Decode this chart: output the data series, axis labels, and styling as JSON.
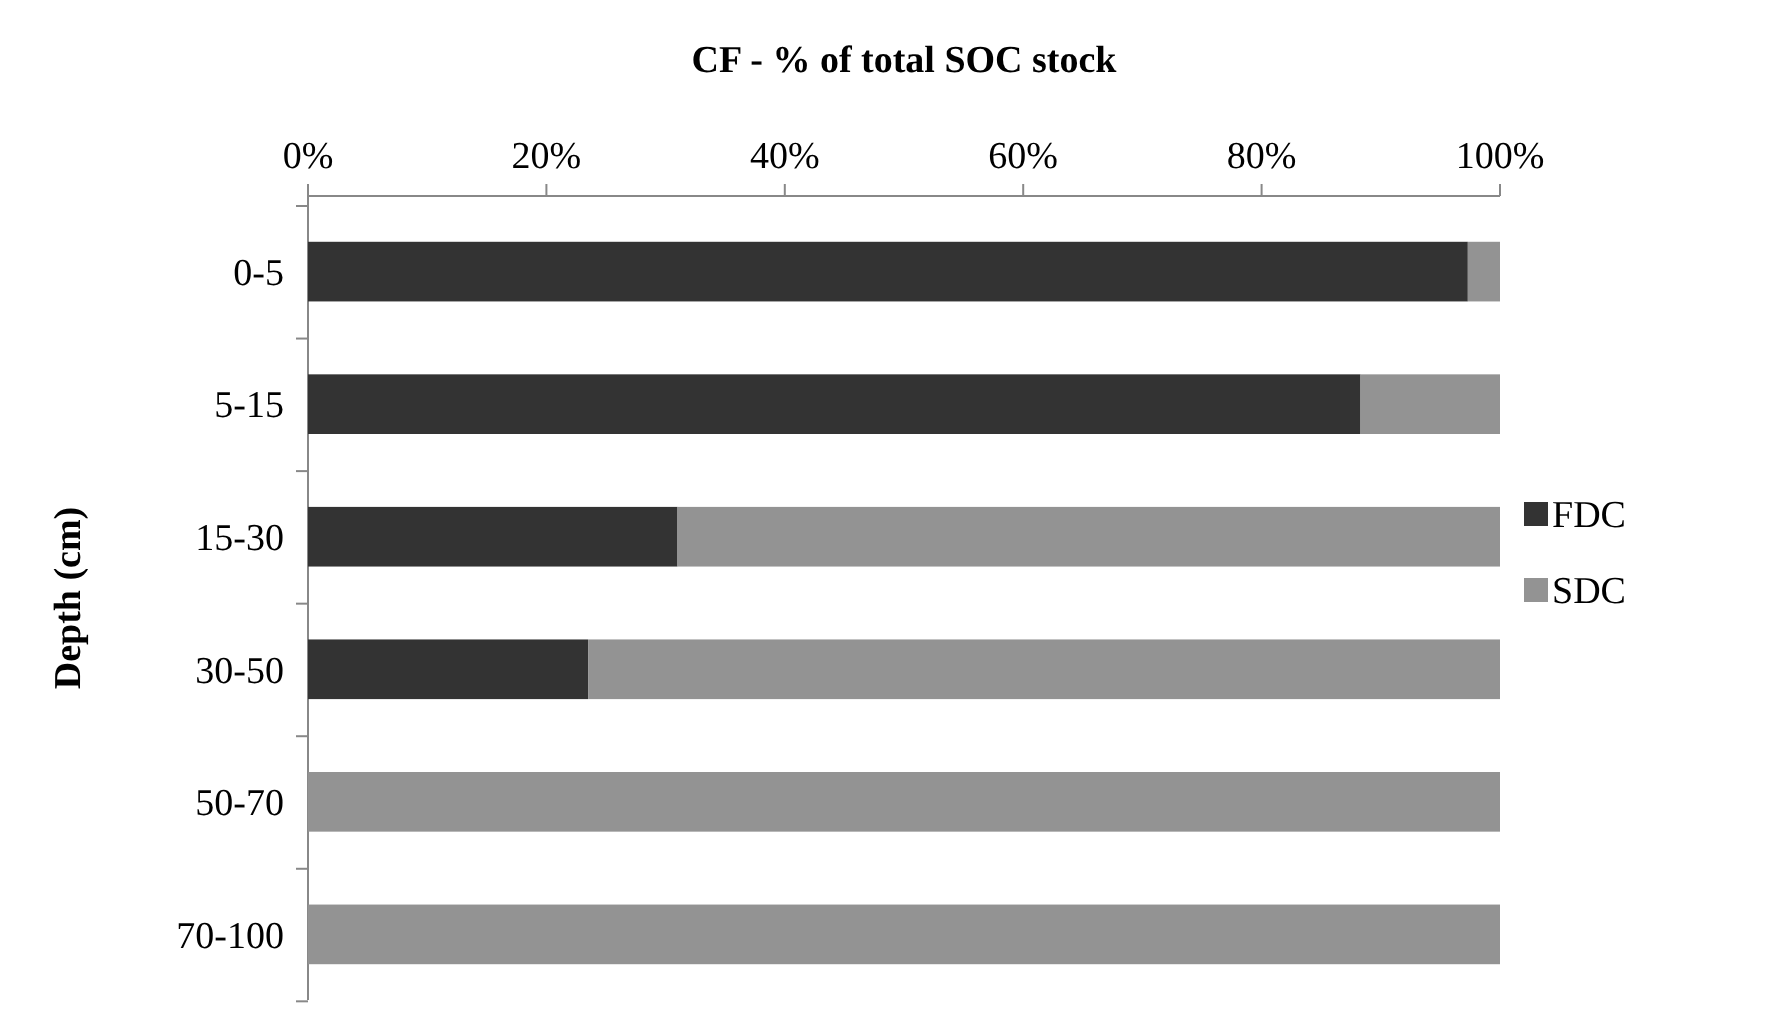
{
  "chart_data": {
    "type": "bar",
    "orientation": "horizontal",
    "stacked": true,
    "xlabel": "CF - % of total SOC stock",
    "ylabel": "Depth (cm)",
    "categories": [
      "0-5",
      "5-15",
      "15-30",
      "30-50",
      "50-70",
      "70-100"
    ],
    "series": [
      {
        "name": "FDC",
        "color": "#333333",
        "values": [
          97.3,
          88.3,
          31,
          23.5,
          0,
          0
        ]
      },
      {
        "name": "SDC",
        "color": "#939393",
        "values": [
          2.7,
          11.7,
          69,
          76.5,
          100,
          100
        ]
      }
    ],
    "xlim": [
      0,
      100
    ],
    "xticks": [
      {
        "value": 0,
        "label": "0%"
      },
      {
        "value": 20,
        "label": "20%"
      },
      {
        "value": 40,
        "label": "40%"
      },
      {
        "value": 60,
        "label": "60%"
      },
      {
        "value": 80,
        "label": "80%"
      },
      {
        "value": 100,
        "label": "100%"
      }
    ],
    "grid": false,
    "legend": "right"
  }
}
